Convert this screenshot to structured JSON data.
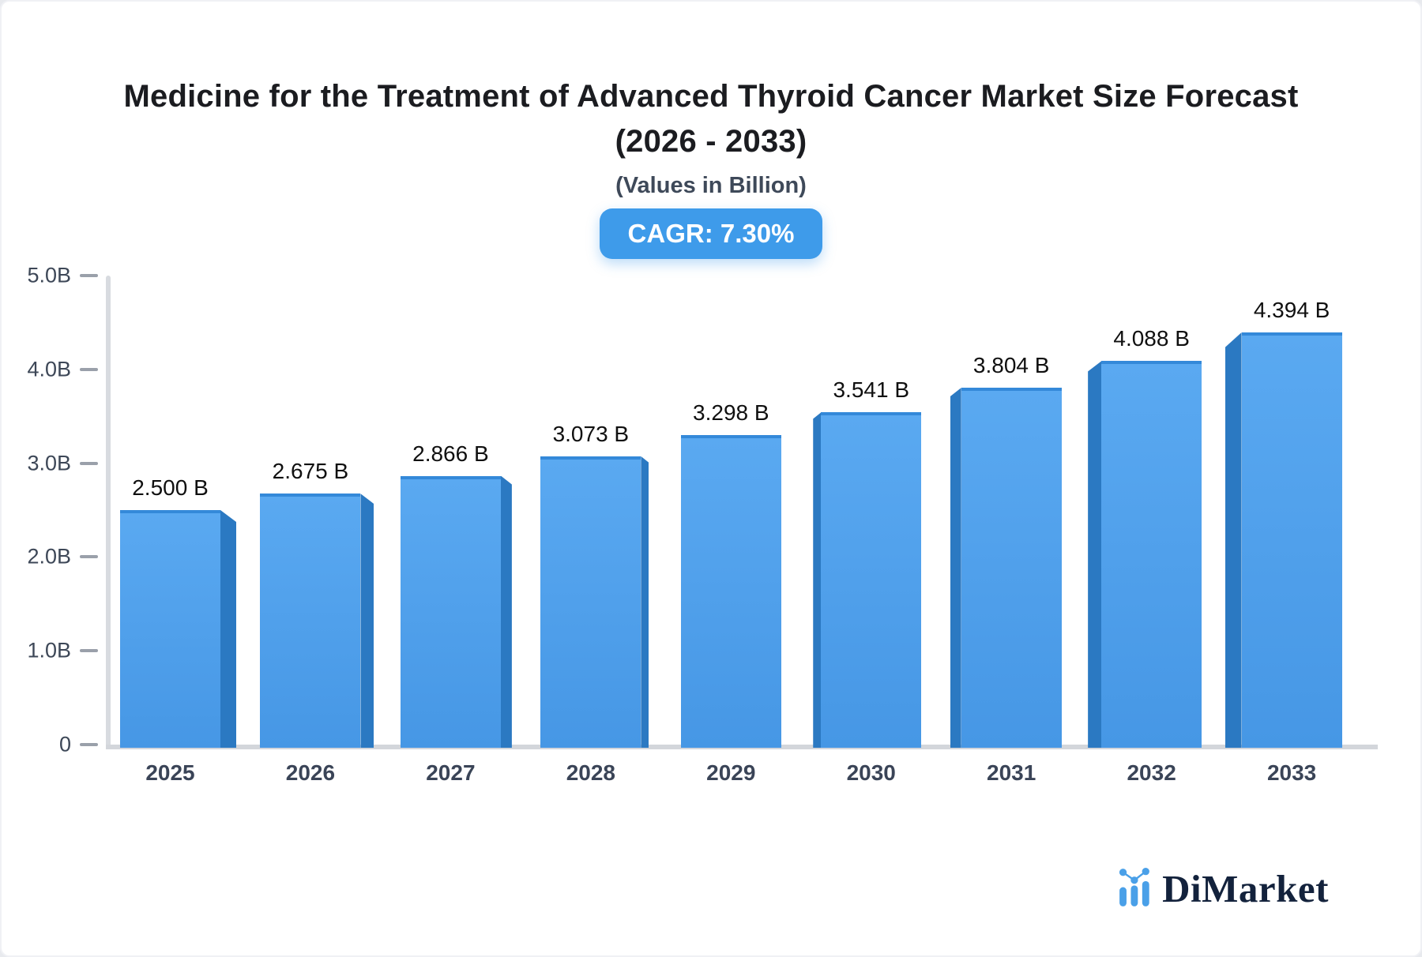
{
  "header": {
    "title_line1": "Medicine for the Treatment of Advanced Thyroid Cancer Market Size Forecast",
    "title_line2": "(2026 - 2033)",
    "subtitle": "(Values in Billion)",
    "cagr_badge": "CAGR: 7.30%"
  },
  "chart_data": {
    "type": "bar",
    "title": "Medicine for the Treatment of Advanced Thyroid Cancer Market Size Forecast (2026 - 2033)",
    "units": "Values in Billion",
    "cagr_percent": 7.3,
    "categories": [
      "2025",
      "2026",
      "2027",
      "2028",
      "2029",
      "2030",
      "2031",
      "2032",
      "2033"
    ],
    "values": [
      2.5,
      2.675,
      2.866,
      3.073,
      3.298,
      3.541,
      3.804,
      4.088,
      4.394
    ],
    "value_labels": [
      "2.500 B",
      "2.675 B",
      "2.866 B",
      "3.073 B",
      "3.298 B",
      "3.541 B",
      "3.804 B",
      "4.088 B",
      "4.394 B"
    ],
    "yticks": [
      {
        "value": 5.0,
        "label": "5.0B"
      },
      {
        "value": 4.0,
        "label": "4.0B"
      },
      {
        "value": 3.0,
        "label": "3.0B"
      },
      {
        "value": 2.0,
        "label": "2.0B"
      },
      {
        "value": 1.0,
        "label": "1.0B"
      },
      {
        "value": 0,
        "label": "0"
      }
    ],
    "ylim": [
      0,
      5
    ],
    "grid": false,
    "legend": false,
    "bar_face_color": "#4fa2ec",
    "bar_side_color": "#2b79c2",
    "bar_top_edge_color": "#3489d9",
    "axis_color": "#d5d9de",
    "tick_label_color": "#3d4757",
    "value_label_color": "#101010",
    "badge_color": "#3e9bea"
  },
  "footer": {
    "logo_text": "DiMarket",
    "logo_icon": "bar-chart-logo-icon",
    "logo_text_color": "#13223c",
    "logo_accent_color": "#4aa0e8"
  }
}
